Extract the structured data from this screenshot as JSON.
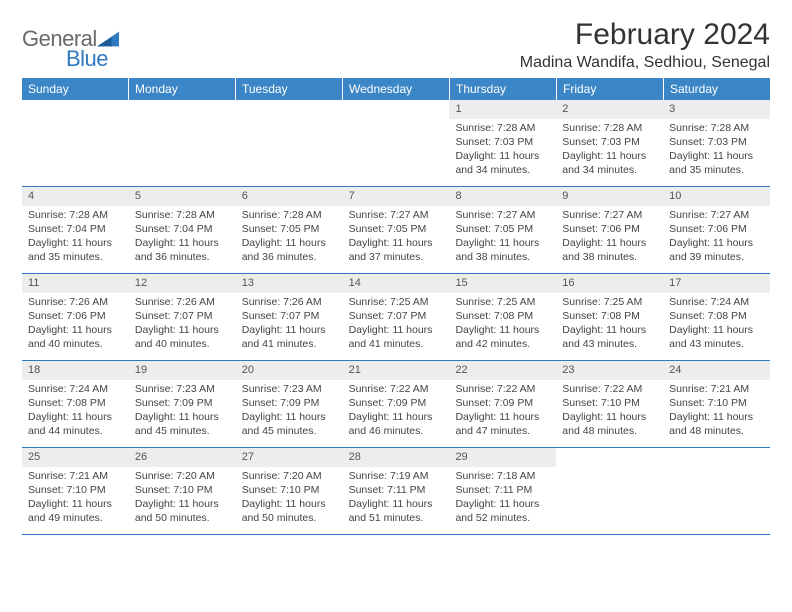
{
  "logo": {
    "text1": "General",
    "text2": "Blue"
  },
  "title": "February 2024",
  "location": "Madina Wandifa, Sedhiou, Senegal",
  "colors": {
    "header_bg": "#3b86c6",
    "header_text": "#ffffff",
    "daynum_bg": "#eceded",
    "week_divider": "#2f7ac0",
    "logo_gray": "#6a6a6a",
    "logo_blue": "#2f7ac0"
  },
  "day_headers": [
    "Sunday",
    "Monday",
    "Tuesday",
    "Wednesday",
    "Thursday",
    "Friday",
    "Saturday"
  ],
  "weeks": [
    [
      {
        "day": "",
        "lines": []
      },
      {
        "day": "",
        "lines": []
      },
      {
        "day": "",
        "lines": []
      },
      {
        "day": "",
        "lines": []
      },
      {
        "day": "1",
        "lines": [
          "Sunrise: 7:28 AM",
          "Sunset: 7:03 PM",
          "Daylight: 11 hours and 34 minutes."
        ]
      },
      {
        "day": "2",
        "lines": [
          "Sunrise: 7:28 AM",
          "Sunset: 7:03 PM",
          "Daylight: 11 hours and 34 minutes."
        ]
      },
      {
        "day": "3",
        "lines": [
          "Sunrise: 7:28 AM",
          "Sunset: 7:03 PM",
          "Daylight: 11 hours and 35 minutes."
        ]
      }
    ],
    [
      {
        "day": "4",
        "lines": [
          "Sunrise: 7:28 AM",
          "Sunset: 7:04 PM",
          "Daylight: 11 hours and 35 minutes."
        ]
      },
      {
        "day": "5",
        "lines": [
          "Sunrise: 7:28 AM",
          "Sunset: 7:04 PM",
          "Daylight: 11 hours and 36 minutes."
        ]
      },
      {
        "day": "6",
        "lines": [
          "Sunrise: 7:28 AM",
          "Sunset: 7:05 PM",
          "Daylight: 11 hours and 36 minutes."
        ]
      },
      {
        "day": "7",
        "lines": [
          "Sunrise: 7:27 AM",
          "Sunset: 7:05 PM",
          "Daylight: 11 hours and 37 minutes."
        ]
      },
      {
        "day": "8",
        "lines": [
          "Sunrise: 7:27 AM",
          "Sunset: 7:05 PM",
          "Daylight: 11 hours and 38 minutes."
        ]
      },
      {
        "day": "9",
        "lines": [
          "Sunrise: 7:27 AM",
          "Sunset: 7:06 PM",
          "Daylight: 11 hours and 38 minutes."
        ]
      },
      {
        "day": "10",
        "lines": [
          "Sunrise: 7:27 AM",
          "Sunset: 7:06 PM",
          "Daylight: 11 hours and 39 minutes."
        ]
      }
    ],
    [
      {
        "day": "11",
        "lines": [
          "Sunrise: 7:26 AM",
          "Sunset: 7:06 PM",
          "Daylight: 11 hours and 40 minutes."
        ]
      },
      {
        "day": "12",
        "lines": [
          "Sunrise: 7:26 AM",
          "Sunset: 7:07 PM",
          "Daylight: 11 hours and 40 minutes."
        ]
      },
      {
        "day": "13",
        "lines": [
          "Sunrise: 7:26 AM",
          "Sunset: 7:07 PM",
          "Daylight: 11 hours and 41 minutes."
        ]
      },
      {
        "day": "14",
        "lines": [
          "Sunrise: 7:25 AM",
          "Sunset: 7:07 PM",
          "Daylight: 11 hours and 41 minutes."
        ]
      },
      {
        "day": "15",
        "lines": [
          "Sunrise: 7:25 AM",
          "Sunset: 7:08 PM",
          "Daylight: 11 hours and 42 minutes."
        ]
      },
      {
        "day": "16",
        "lines": [
          "Sunrise: 7:25 AM",
          "Sunset: 7:08 PM",
          "Daylight: 11 hours and 43 minutes."
        ]
      },
      {
        "day": "17",
        "lines": [
          "Sunrise: 7:24 AM",
          "Sunset: 7:08 PM",
          "Daylight: 11 hours and 43 minutes."
        ]
      }
    ],
    [
      {
        "day": "18",
        "lines": [
          "Sunrise: 7:24 AM",
          "Sunset: 7:08 PM",
          "Daylight: 11 hours and 44 minutes."
        ]
      },
      {
        "day": "19",
        "lines": [
          "Sunrise: 7:23 AM",
          "Sunset: 7:09 PM",
          "Daylight: 11 hours and 45 minutes."
        ]
      },
      {
        "day": "20",
        "lines": [
          "Sunrise: 7:23 AM",
          "Sunset: 7:09 PM",
          "Daylight: 11 hours and 45 minutes."
        ]
      },
      {
        "day": "21",
        "lines": [
          "Sunrise: 7:22 AM",
          "Sunset: 7:09 PM",
          "Daylight: 11 hours and 46 minutes."
        ]
      },
      {
        "day": "22",
        "lines": [
          "Sunrise: 7:22 AM",
          "Sunset: 7:09 PM",
          "Daylight: 11 hours and 47 minutes."
        ]
      },
      {
        "day": "23",
        "lines": [
          "Sunrise: 7:22 AM",
          "Sunset: 7:10 PM",
          "Daylight: 11 hours and 48 minutes."
        ]
      },
      {
        "day": "24",
        "lines": [
          "Sunrise: 7:21 AM",
          "Sunset: 7:10 PM",
          "Daylight: 11 hours and 48 minutes."
        ]
      }
    ],
    [
      {
        "day": "25",
        "lines": [
          "Sunrise: 7:21 AM",
          "Sunset: 7:10 PM",
          "Daylight: 11 hours and 49 minutes."
        ]
      },
      {
        "day": "26",
        "lines": [
          "Sunrise: 7:20 AM",
          "Sunset: 7:10 PM",
          "Daylight: 11 hours and 50 minutes."
        ]
      },
      {
        "day": "27",
        "lines": [
          "Sunrise: 7:20 AM",
          "Sunset: 7:10 PM",
          "Daylight: 11 hours and 50 minutes."
        ]
      },
      {
        "day": "28",
        "lines": [
          "Sunrise: 7:19 AM",
          "Sunset: 7:11 PM",
          "Daylight: 11 hours and 51 minutes."
        ]
      },
      {
        "day": "29",
        "lines": [
          "Sunrise: 7:18 AM",
          "Sunset: 7:11 PM",
          "Daylight: 11 hours and 52 minutes."
        ]
      },
      {
        "day": "",
        "lines": []
      },
      {
        "day": "",
        "lines": []
      }
    ]
  ]
}
